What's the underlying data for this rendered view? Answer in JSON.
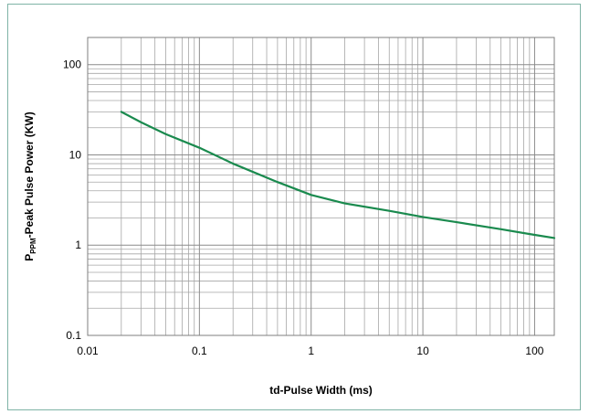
{
  "chart_data": {
    "type": "line",
    "xlabel": "td-Pulse Width (ms)",
    "ylabel_main": "P",
    "ylabel_sub": "PPM",
    "ylabel_rest": "-Peak Pulse Power (KW)",
    "x_scale": "log",
    "y_scale": "log",
    "xlim": [
      0.01,
      150
    ],
    "ylim": [
      0.1,
      200
    ],
    "x_ticks": [
      {
        "value": 0.01,
        "label": "0.01"
      },
      {
        "value": 0.1,
        "label": "0.1"
      },
      {
        "value": 1,
        "label": "1"
      },
      {
        "value": 10,
        "label": "10"
      },
      {
        "value": 100,
        "label": "100"
      }
    ],
    "y_ticks": [
      {
        "value": 0.1,
        "label": "0.1"
      },
      {
        "value": 1,
        "label": "1"
      },
      {
        "value": 10,
        "label": "10"
      },
      {
        "value": 100,
        "label": "100"
      }
    ],
    "grid": true,
    "line_color": "#1a8a4e",
    "series": [
      {
        "x": [
          0.02,
          0.03,
          0.05,
          0.1,
          0.2,
          0.5,
          1,
          2,
          5,
          10,
          20,
          50,
          100,
          150
        ],
        "y": [
          30,
          23,
          17,
          12,
          8,
          5,
          3.6,
          2.9,
          2.4,
          2.05,
          1.8,
          1.5,
          1.3,
          1.2
        ]
      }
    ]
  }
}
